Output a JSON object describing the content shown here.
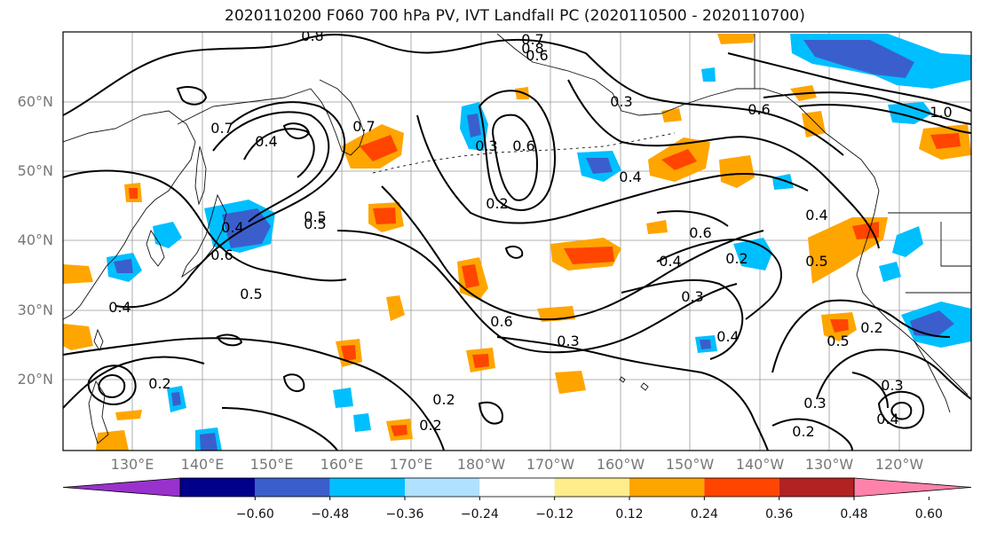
{
  "title": "2020110200 F060 700 hPa PV, IVT Landfall PC (2020110500 - 2020110700)",
  "map": {
    "lat_labels": [
      "60°N",
      "50°N",
      "40°N",
      "30°N",
      "20°N"
    ],
    "lon_labels": [
      "130°E",
      "140°E",
      "150°E",
      "160°E",
      "170°E",
      "180°W",
      "170°W",
      "160°W",
      "150°W",
      "140°W",
      "130°W",
      "120°W"
    ],
    "contour_labels": [
      "0.8",
      "0.7",
      "0.6",
      "0.4",
      "0.7",
      "0.5",
      "0.3",
      "0.2",
      "0.4",
      "0.6",
      "0.4",
      "0.2",
      "0.3",
      "0.6",
      "0.3",
      "0.2",
      "0.2",
      "0.5",
      "0.4",
      "0.3",
      "0.2",
      "0.4",
      "0.6",
      "0.7",
      "0.8",
      "1.0",
      "0.6",
      "0.5",
      "0.4",
      "0.6",
      "0.3",
      "0.5",
      "0.4",
      "0.2",
      "0.3",
      "0.4",
      "0.5",
      "0.2"
    ]
  },
  "colorbar": {
    "colors": [
      "#9932cc",
      "#00008b",
      "#3a5fcd",
      "#00bfff",
      "#b0e2ff",
      "#ffffff",
      "#ffec8b",
      "#ffa500",
      "#ff4500",
      "#b22222",
      "#ff82ab"
    ],
    "tick_labels": [
      "−0.60",
      "−0.48",
      "−0.36",
      "−0.24",
      "−0.12",
      "0.12",
      "0.24",
      "0.36",
      "0.48",
      "0.60"
    ]
  }
}
